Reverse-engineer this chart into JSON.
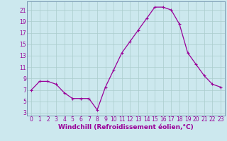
{
  "x": [
    0,
    1,
    2,
    3,
    4,
    5,
    6,
    7,
    8,
    9,
    10,
    11,
    12,
    13,
    14,
    15,
    16,
    17,
    18,
    19,
    20,
    21,
    22,
    23
  ],
  "y": [
    7,
    8.5,
    8.5,
    8,
    6.5,
    5.5,
    5.5,
    5.5,
    3.5,
    7.5,
    10.5,
    13.5,
    15.5,
    17.5,
    19.5,
    21.5,
    21.5,
    21,
    18.5,
    13.5,
    11.5,
    9.5,
    8,
    7.5
  ],
  "line_color": "#990099",
  "marker": "+",
  "marker_size": 3,
  "bg_color": "#cce8ee",
  "grid_color": "#aacccc",
  "xlabel": "Windchill (Refroidissement éolien,°C)",
  "xlabel_fontsize": 6.5,
  "yticks": [
    3,
    5,
    7,
    9,
    11,
    13,
    15,
    17,
    19,
    21
  ],
  "xticks": [
    0,
    1,
    2,
    3,
    4,
    5,
    6,
    7,
    8,
    9,
    10,
    11,
    12,
    13,
    14,
    15,
    16,
    17,
    18,
    19,
    20,
    21,
    22,
    23
  ],
  "ylim": [
    2.5,
    22.5
  ],
  "xlim": [
    -0.5,
    23.5
  ],
  "tick_label_color": "#990099",
  "tick_label_fontsize": 5.5,
  "xlabel_color": "#990099",
  "linewidth": 0.9
}
